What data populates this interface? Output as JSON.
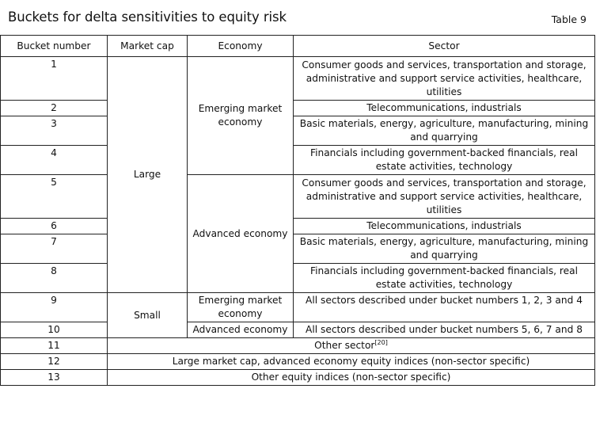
{
  "header": {
    "title": "Buckets for delta sensitivities to equity risk",
    "table_label": "Table 9"
  },
  "columns": [
    "Bucket number",
    "Market cap",
    "Economy",
    "Sector"
  ],
  "market_caps": {
    "large": "Large",
    "small": "Small"
  },
  "economies": {
    "emerging": "Emerging market economy",
    "advanced": "Advanced economy"
  },
  "rows": [
    {
      "bucket": "1",
      "sector": "Consumer goods and services, transportation and storage, administrative and support service activities, healthcare, utilities"
    },
    {
      "bucket": "2",
      "sector": "Telecommunications, industrials"
    },
    {
      "bucket": "3",
      "sector": "Basic materials, energy, agriculture, manufacturing, mining and quarrying"
    },
    {
      "bucket": "4",
      "sector": "Financials including government-backed financials, real estate activities, technology"
    },
    {
      "bucket": "5",
      "sector": "Consumer goods and services, transportation and storage, administrative and support service activities, healthcare, utilities"
    },
    {
      "bucket": "6",
      "sector": "Telecommunications, industrials"
    },
    {
      "bucket": "7",
      "sector": "Basic materials, energy, agriculture, manufacturing, mining and quarrying"
    },
    {
      "bucket": "8",
      "sector": "Financials including government-backed financials, real estate activities, technology"
    },
    {
      "bucket": "9",
      "economy": "Emerging market economy",
      "sector": "All sectors described under bucket numbers 1, 2, 3 and 4"
    },
    {
      "bucket": "10",
      "economy": "Advanced economy",
      "sector": "All sectors described under bucket numbers 5, 6, 7 and 8"
    },
    {
      "bucket": "11",
      "description": "Other sector",
      "footnote": "[20]"
    },
    {
      "bucket": "12",
      "description": "Large market cap, advanced economy equity indices (non-sector specific)"
    },
    {
      "bucket": "13",
      "description": "Other equity indices (non-sector specific)"
    }
  ]
}
